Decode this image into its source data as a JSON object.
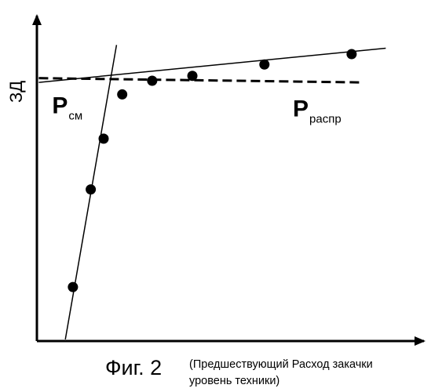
{
  "chart_data": {
    "type": "scatter",
    "title": "Фиг. 2",
    "caption_lines": [
      "(Предшествующий Расход закачки",
      "уровень техники)"
    ],
    "xlabel": "",
    "ylabel": "ЗД",
    "xlim": [
      0,
      10
    ],
    "ylim": [
      0,
      10
    ],
    "grid": false,
    "points": [
      {
        "x": 0.95,
        "y": 1.66
      },
      {
        "x": 1.42,
        "y": 4.66
      },
      {
        "x": 1.76,
        "y": 6.22
      },
      {
        "x": 2.25,
        "y": 7.58
      },
      {
        "x": 3.04,
        "y": 8.0
      },
      {
        "x": 4.1,
        "y": 8.15
      },
      {
        "x": 6.0,
        "y": 8.5
      },
      {
        "x": 8.3,
        "y": 8.82
      }
    ],
    "lines": [
      {
        "name": "steep",
        "style": "solid",
        "from": [
          0.75,
          0.05
        ],
        "to": [
          2.1,
          9.1
        ]
      },
      {
        "name": "gentle",
        "style": "solid",
        "from": [
          0.05,
          7.95
        ],
        "to": [
          9.2,
          9.0
        ]
      },
      {
        "name": "dashed",
        "style": "dashed",
        "from": [
          0.05,
          8.08
        ],
        "to": [
          8.5,
          7.95
        ]
      }
    ],
    "annotations": [
      {
        "main": "P",
        "sub": "см",
        "x": 0.4,
        "y": 7.0
      },
      {
        "main": "P",
        "sub": "распр",
        "x": 6.75,
        "y": 6.9
      }
    ]
  }
}
